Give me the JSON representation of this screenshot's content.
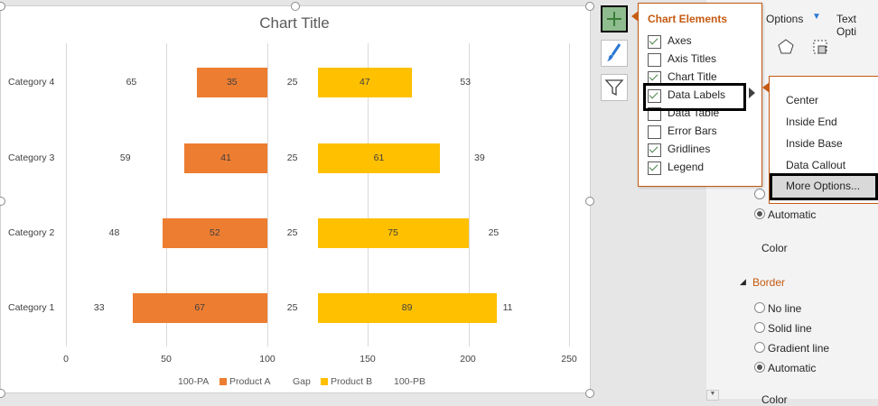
{
  "chart": {
    "title": "Chart Title",
    "categories": [
      "Category 4",
      "Category 3",
      "Category 2",
      "Category 1"
    ],
    "ticks": [
      "0",
      "50",
      "100",
      "150",
      "200",
      "250"
    ],
    "legend": [
      "100-PA",
      "Product A",
      "Gap",
      "Product B",
      "100-PB"
    ]
  },
  "chart_data": {
    "type": "bar",
    "orientation": "horizontal",
    "stacked": true,
    "title": "Chart Title",
    "categories": [
      "Category 1",
      "Category 2",
      "Category 3",
      "Category 4"
    ],
    "series": [
      {
        "name": "100-PA",
        "values": [
          33,
          48,
          59,
          65
        ],
        "color": "none"
      },
      {
        "name": "Product A",
        "values": [
          67,
          52,
          41,
          35
        ],
        "color": "#ED7D31"
      },
      {
        "name": "Gap",
        "values": [
          25,
          25,
          25,
          25
        ],
        "color": "none"
      },
      {
        "name": "Product B",
        "values": [
          89,
          75,
          61,
          47
        ],
        "color": "#FFC000"
      },
      {
        "name": "100-PB",
        "values": [
          11,
          25,
          39,
          53
        ],
        "color": "none"
      }
    ],
    "xlim": [
      0,
      250
    ],
    "grid": true,
    "legend": "bottom"
  },
  "side_buttons": [
    "chart-elements-icon",
    "chart-styles-icon",
    "chart-filters-icon"
  ],
  "flyout": {
    "title": "Chart Elements",
    "items": [
      {
        "label": "Axes",
        "checked": true
      },
      {
        "label": "Axis Titles",
        "checked": false
      },
      {
        "label": "Chart Title",
        "checked": true
      },
      {
        "label": "Data Labels",
        "checked": true
      },
      {
        "label": "Data Table",
        "checked": false
      },
      {
        "label": "Error Bars",
        "checked": false
      },
      {
        "label": "Gridlines",
        "checked": true
      },
      {
        "label": "Legend",
        "checked": true
      }
    ]
  },
  "submenu": {
    "items": [
      "Center",
      "Inside End",
      "Inside Base",
      "Data Callout",
      "More Options..."
    ]
  },
  "pane": {
    "tab1": "Options",
    "tab2": "Text Opti",
    "automatic1": "Automatic",
    "color_label": "Color",
    "border_header": "Border",
    "border_options": [
      "No line",
      "Solid line",
      "Gradient line",
      "Automatic"
    ],
    "color_label2": "Color"
  },
  "colors": {
    "accent": "#c55a11",
    "product_a": "#ED7D31",
    "product_b": "#FFC000"
  }
}
